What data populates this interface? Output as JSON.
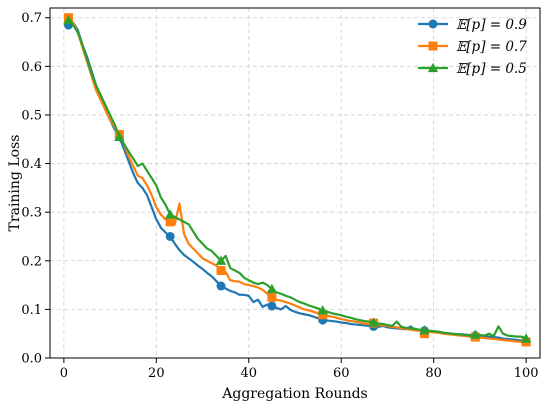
{
  "chart_data": {
    "type": "line",
    "xlabel": "Aggregation Rounds",
    "ylabel": "Training Loss",
    "xlim": [
      -3,
      103
    ],
    "ylim": [
      0,
      0.72
    ],
    "x_ticks": [
      0,
      20,
      40,
      60,
      80,
      100
    ],
    "y_ticks": [
      0.0,
      0.1,
      0.2,
      0.3,
      0.4,
      0.5,
      0.6,
      0.7
    ],
    "grid": true,
    "legend_position": "top-right",
    "series": [
      {
        "name": "𝔼[p] = 0.9",
        "color": "#1f77b4",
        "marker": "circle",
        "marker_x": [
          1,
          12,
          23,
          34,
          45,
          56,
          67,
          78,
          89,
          100
        ],
        "x": [
          1,
          2,
          3,
          4,
          5,
          6,
          7,
          8,
          9,
          10,
          11,
          12,
          13,
          14,
          15,
          16,
          17,
          18,
          19,
          20,
          21,
          22,
          23,
          24,
          25,
          26,
          27,
          28,
          29,
          30,
          31,
          32,
          33,
          34,
          35,
          36,
          37,
          38,
          39,
          40,
          41,
          42,
          43,
          44,
          45,
          46,
          47,
          48,
          49,
          50,
          51,
          52,
          53,
          54,
          55,
          56,
          57,
          58,
          59,
          60,
          61,
          62,
          63,
          64,
          65,
          66,
          67,
          68,
          69,
          70,
          71,
          72,
          73,
          74,
          75,
          76,
          77,
          78,
          79,
          80,
          81,
          82,
          83,
          84,
          85,
          86,
          87,
          88,
          89,
          90,
          91,
          92,
          93,
          94,
          95,
          96,
          97,
          98,
          99,
          100
        ],
        "y": [
          0.685,
          0.69,
          0.675,
          0.645,
          0.62,
          0.59,
          0.56,
          0.535,
          0.51,
          0.49,
          0.47,
          0.455,
          0.43,
          0.405,
          0.38,
          0.36,
          0.35,
          0.335,
          0.31,
          0.285,
          0.268,
          0.258,
          0.25,
          0.235,
          0.222,
          0.212,
          0.205,
          0.198,
          0.19,
          0.183,
          0.175,
          0.168,
          0.158,
          0.148,
          0.143,
          0.138,
          0.135,
          0.13,
          0.13,
          0.128,
          0.115,
          0.12,
          0.105,
          0.11,
          0.107,
          0.103,
          0.1,
          0.107,
          0.099,
          0.095,
          0.092,
          0.09,
          0.088,
          0.085,
          0.082,
          0.078,
          0.077,
          0.076,
          0.075,
          0.073,
          0.072,
          0.07,
          0.069,
          0.068,
          0.067,
          0.066,
          0.065,
          0.064,
          0.066,
          0.063,
          0.062,
          0.061,
          0.06,
          0.059,
          0.065,
          0.058,
          0.057,
          0.056,
          0.055,
          0.055,
          0.054,
          0.052,
          0.051,
          0.05,
          0.049,
          0.049,
          0.048,
          0.047,
          0.046,
          0.046,
          0.045,
          0.044,
          0.043,
          0.042,
          0.04,
          0.039,
          0.038,
          0.037,
          0.036,
          0.035
        ]
      },
      {
        "name": "𝔼[p] = 0.7",
        "color": "#ff7f0e",
        "marker": "square",
        "marker_x": [
          1,
          12,
          23,
          34,
          45,
          56,
          67,
          78,
          89,
          100
        ],
        "x": [
          1,
          2,
          3,
          4,
          5,
          6,
          7,
          8,
          9,
          10,
          11,
          12,
          13,
          14,
          15,
          16,
          17,
          18,
          19,
          20,
          21,
          22,
          23,
          24,
          25,
          26,
          27,
          28,
          29,
          30,
          31,
          32,
          33,
          34,
          35,
          36,
          37,
          38,
          39,
          40,
          41,
          42,
          43,
          44,
          45,
          46,
          47,
          48,
          49,
          50,
          51,
          52,
          53,
          54,
          55,
          56,
          57,
          58,
          59,
          60,
          61,
          62,
          63,
          64,
          65,
          66,
          67,
          68,
          69,
          70,
          71,
          72,
          73,
          74,
          75,
          76,
          77,
          78,
          79,
          80,
          81,
          82,
          83,
          84,
          85,
          86,
          87,
          88,
          89,
          90,
          91,
          92,
          93,
          94,
          95,
          96,
          97,
          98,
          99,
          100
        ],
        "y": [
          0.7,
          0.69,
          0.67,
          0.64,
          0.61,
          0.58,
          0.55,
          0.53,
          0.51,
          0.49,
          0.475,
          0.46,
          0.44,
          0.415,
          0.395,
          0.375,
          0.37,
          0.355,
          0.335,
          0.31,
          0.295,
          0.285,
          0.28,
          0.275,
          0.318,
          0.255,
          0.235,
          0.225,
          0.215,
          0.205,
          0.2,
          0.195,
          0.19,
          0.18,
          0.177,
          0.16,
          0.158,
          0.157,
          0.152,
          0.15,
          0.148,
          0.145,
          0.14,
          0.132,
          0.125,
          0.12,
          0.118,
          0.115,
          0.112,
          0.108,
          0.104,
          0.1,
          0.098,
          0.095,
          0.092,
          0.089,
          0.087,
          0.085,
          0.083,
          0.08,
          0.078,
          0.076,
          0.075,
          0.073,
          0.071,
          0.07,
          0.072,
          0.068,
          0.067,
          0.066,
          0.064,
          0.063,
          0.061,
          0.06,
          0.058,
          0.057,
          0.056,
          0.05,
          0.054,
          0.053,
          0.052,
          0.05,
          0.049,
          0.048,
          0.047,
          0.046,
          0.045,
          0.044,
          0.043,
          0.042,
          0.041,
          0.04,
          0.039,
          0.038,
          0.037,
          0.036,
          0.035,
          0.034,
          0.033,
          0.033
        ]
      },
      {
        "name": "𝔼[p] = 0.5",
        "color": "#2ca02c",
        "marker": "triangle",
        "marker_x": [
          1,
          12,
          23,
          34,
          45,
          56,
          67,
          78,
          89,
          100
        ],
        "x": [
          1,
          2,
          3,
          4,
          5,
          6,
          7,
          8,
          9,
          10,
          11,
          12,
          13,
          14,
          15,
          16,
          17,
          18,
          19,
          20,
          21,
          22,
          23,
          24,
          25,
          26,
          27,
          28,
          29,
          30,
          31,
          32,
          33,
          34,
          35,
          36,
          37,
          38,
          39,
          40,
          41,
          42,
          43,
          44,
          45,
          46,
          47,
          48,
          49,
          50,
          51,
          52,
          53,
          54,
          55,
          56,
          57,
          58,
          59,
          60,
          61,
          62,
          63,
          64,
          65,
          66,
          67,
          68,
          69,
          70,
          71,
          72,
          73,
          74,
          75,
          76,
          77,
          78,
          79,
          80,
          81,
          82,
          83,
          84,
          85,
          86,
          87,
          88,
          89,
          90,
          91,
          92,
          93,
          94,
          95,
          96,
          97,
          98,
          99,
          100
        ],
        "y": [
          0.695,
          0.685,
          0.67,
          0.645,
          0.615,
          0.585,
          0.56,
          0.54,
          0.52,
          0.5,
          0.48,
          0.455,
          0.44,
          0.425,
          0.41,
          0.395,
          0.4,
          0.385,
          0.37,
          0.355,
          0.33,
          0.315,
          0.295,
          0.29,
          0.285,
          0.28,
          0.275,
          0.26,
          0.245,
          0.235,
          0.225,
          0.22,
          0.21,
          0.2,
          0.21,
          0.185,
          0.18,
          0.175,
          0.165,
          0.16,
          0.155,
          0.152,
          0.155,
          0.15,
          0.142,
          0.135,
          0.132,
          0.128,
          0.125,
          0.12,
          0.115,
          0.112,
          0.108,
          0.105,
          0.102,
          0.098,
          0.095,
          0.092,
          0.09,
          0.088,
          0.085,
          0.083,
          0.08,
          0.078,
          0.076,
          0.075,
          0.073,
          0.071,
          0.07,
          0.068,
          0.066,
          0.075,
          0.064,
          0.062,
          0.061,
          0.06,
          0.058,
          0.057,
          0.056,
          0.055,
          0.054,
          0.052,
          0.051,
          0.05,
          0.049,
          0.048,
          0.047,
          0.046,
          0.048,
          0.047,
          0.046,
          0.05,
          0.045,
          0.065,
          0.05,
          0.046,
          0.045,
          0.044,
          0.044,
          0.04
        ]
      }
    ]
  }
}
